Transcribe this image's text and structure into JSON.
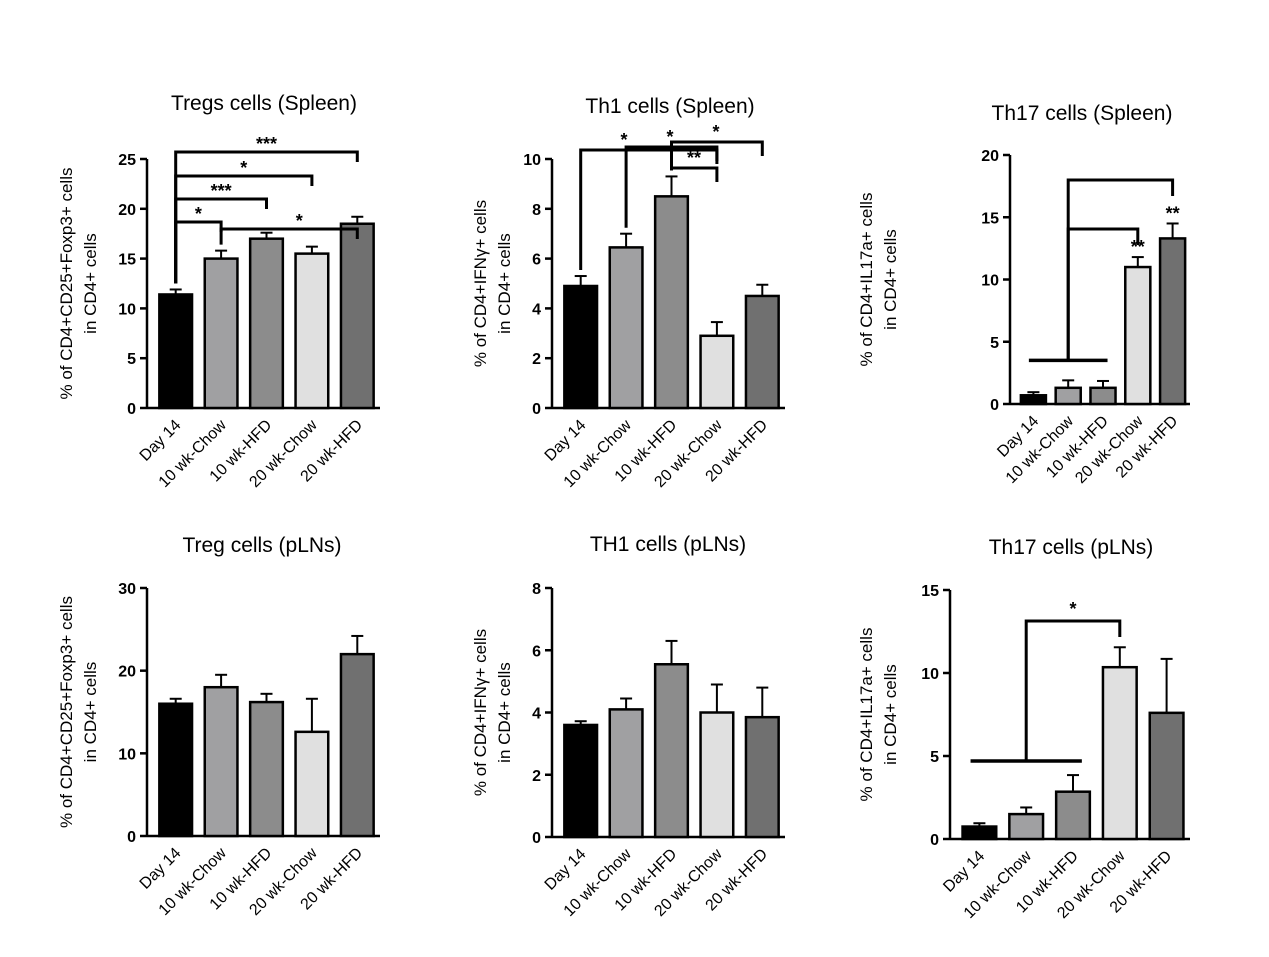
{
  "chart_data": [
    {
      "type": "bar",
      "title": "Tregs cells (Spleen)",
      "ylabel": [
        "% of CD4+CD25+Foxp3+ cells",
        "in CD4+ cells"
      ],
      "categories": [
        "Day 14",
        "10 wk-Chow",
        "10 wk-HFD",
        "20 wk-Chow",
        "20 wk-HFD"
      ],
      "values": [
        11.4,
        15.0,
        17.0,
        15.5,
        18.5
      ],
      "errors": [
        0.5,
        0.8,
        0.6,
        0.7,
        0.7
      ],
      "ylim": [
        0,
        25
      ],
      "yticks": [
        "0",
        "5",
        "10",
        "15",
        "20",
        "25"
      ],
      "bar_colors": [
        "#000000",
        "#a0a0a2",
        "#8c8c8c",
        "#e0e0e0",
        "#707070"
      ],
      "significance": [
        {
          "from": 0,
          "to": 4,
          "label": "***"
        },
        {
          "from": 0,
          "to": 3,
          "label": "*"
        },
        {
          "from": 0,
          "to": 2,
          "label": "***"
        },
        {
          "from": 0,
          "to": 1,
          "label": "*"
        },
        {
          "from": 1,
          "to": 4,
          "label": "*"
        }
      ]
    },
    {
      "type": "bar",
      "title": "Th1 cells (Spleen)",
      "ylabel": [
        "% of CD4+IFNγ+ cells",
        "in CD4+ cells"
      ],
      "categories": [
        "Day 14",
        "10 wk-Chow",
        "10 wk-HFD",
        "20 wk-Chow",
        "20 wk-HFD"
      ],
      "values": [
        4.9,
        6.45,
        8.5,
        2.9,
        4.5
      ],
      "errors": [
        0.4,
        0.55,
        0.8,
        0.55,
        0.45
      ],
      "ylim": [
        0,
        10
      ],
      "yticks": [
        "0",
        "2",
        "4",
        "6",
        "8",
        "10"
      ],
      "bar_colors": [
        "#000000",
        "#a0a0a2",
        "#8c8c8c",
        "#e0e0e0",
        "#707070"
      ],
      "significance": [
        {
          "from": 0,
          "to": 3,
          "label": "*"
        },
        {
          "from": 1,
          "to": 3,
          "label": "*"
        },
        {
          "from": 2,
          "to": 3,
          "label": "**"
        },
        {
          "from": 2,
          "to": 4,
          "label": "*"
        }
      ]
    },
    {
      "type": "bar",
      "title": "Th17 cells (Spleen)",
      "ylabel": [
        "% of CD4+IL17a+ cells",
        "in CD4+ cells"
      ],
      "categories": [
        "Day 14",
        "10 wk-Chow",
        "10 wk-HFD",
        "20 wk-Chow",
        "20 wk-HFD"
      ],
      "values": [
        0.7,
        1.3,
        1.3,
        11.0,
        13.3
      ],
      "errors": [
        0.25,
        0.6,
        0.55,
        0.8,
        1.2
      ],
      "ylim": [
        0,
        20
      ],
      "yticks": [
        "0",
        "5",
        "10",
        "15",
        "20"
      ],
      "bar_colors": [
        "#000000",
        "#a0a0a2",
        "#8c8c8c",
        "#e0e0e0",
        "#707070"
      ],
      "significance": [
        {
          "group": [
            0,
            2
          ],
          "to": 4,
          "label": "**"
        },
        {
          "group": [
            0,
            2
          ],
          "to": 3,
          "label": "**"
        }
      ]
    },
    {
      "type": "bar",
      "title": "Treg cells (pLNs)",
      "ylabel": [
        "% of CD4+CD25+Foxp3+ cells",
        "in CD4+ cells"
      ],
      "categories": [
        "Day 14",
        "10 wk-Chow",
        "10 wk-HFD",
        "20 wk-Chow",
        "20 wk-HFD"
      ],
      "values": [
        16.0,
        18.0,
        16.2,
        12.6,
        22.0
      ],
      "errors": [
        0.6,
        1.5,
        1.0,
        4.0,
        2.2
      ],
      "ylim": [
        0,
        30
      ],
      "yticks": [
        "0",
        "10",
        "20",
        "30"
      ],
      "bar_colors": [
        "#000000",
        "#a0a0a2",
        "#8c8c8c",
        "#e0e0e0",
        "#707070"
      ],
      "significance": []
    },
    {
      "type": "bar",
      "title": "TH1 cells (pLNs)",
      "ylabel": [
        "% of CD4+IFNγ+ cells",
        "in CD4+ cells"
      ],
      "categories": [
        "Day 14",
        "10 wk-Chow",
        "10 wk-HFD",
        "20 wk-Chow",
        "20 wk-HFD"
      ],
      "values": [
        3.6,
        4.1,
        5.55,
        4.0,
        3.85
      ],
      "errors": [
        0.12,
        0.35,
        0.75,
        0.9,
        0.95
      ],
      "ylim": [
        0,
        8
      ],
      "yticks": [
        "0",
        "2",
        "4",
        "6",
        "8"
      ],
      "bar_colors": [
        "#000000",
        "#a0a0a2",
        "#8c8c8c",
        "#e0e0e0",
        "#707070"
      ],
      "significance": []
    },
    {
      "type": "bar",
      "title": "Th17 cells (pLNs)",
      "ylabel": [
        "% of CD4+IL17a+ cells",
        "in CD4+ cells"
      ],
      "categories": [
        "Day 14",
        "10 wk-Chow",
        "10 wk-HFD",
        "20 wk-Chow",
        "20 wk-HFD"
      ],
      "values": [
        0.75,
        1.5,
        2.85,
        10.35,
        7.6
      ],
      "errors": [
        0.2,
        0.4,
        1.0,
        1.2,
        3.25
      ],
      "ylim": [
        0,
        15
      ],
      "yticks": [
        "0",
        "5",
        "10",
        "15"
      ],
      "bar_colors": [
        "#000000",
        "#a0a0a2",
        "#8c8c8c",
        "#e0e0e0",
        "#707070"
      ],
      "significance": [
        {
          "group": [
            0,
            2
          ],
          "to": 3,
          "label": "*"
        }
      ]
    }
  ]
}
